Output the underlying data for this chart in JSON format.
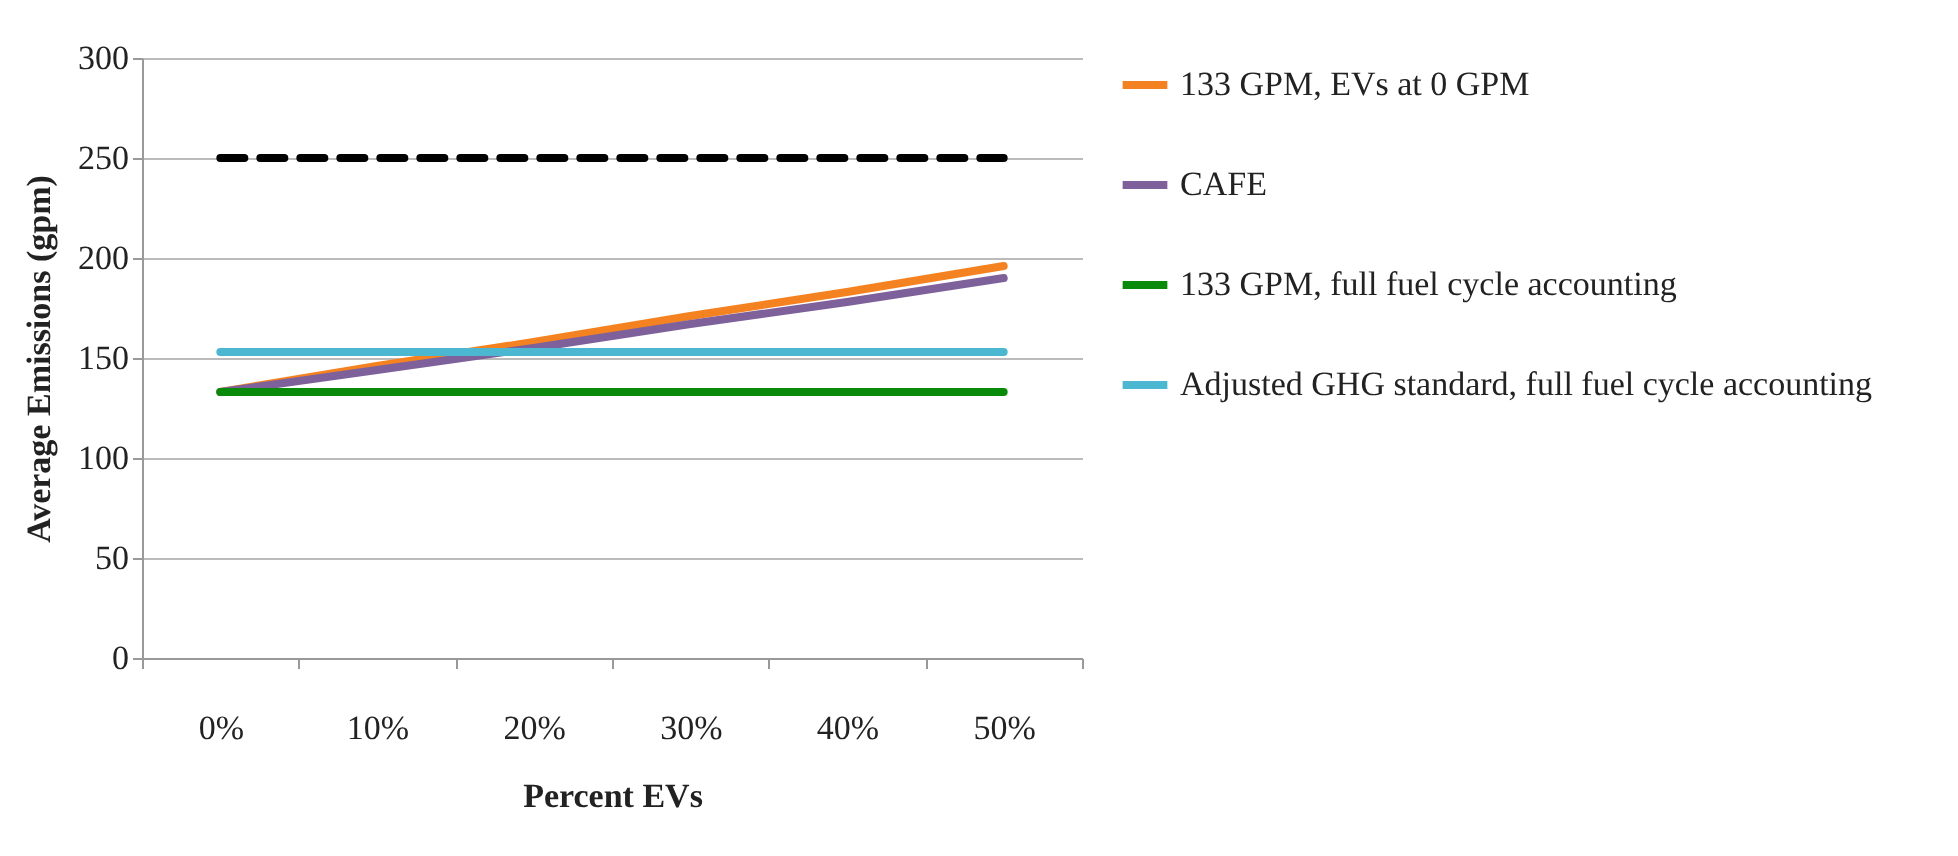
{
  "chart_data": {
    "type": "line",
    "xlabel": "Percent EVs",
    "ylabel": "Average Emissions (gpm)",
    "categories": [
      "0%",
      "10%",
      "20%",
      "30%",
      "40%",
      "50%"
    ],
    "series": [
      {
        "name": "133 GPM, EVs at 0 GPM",
        "color": "#f58220",
        "values": [
          133,
          146,
          158,
          171,
          183,
          196
        ]
      },
      {
        "name": "CAFE",
        "color": "#7e619a",
        "values": [
          133,
          144,
          155,
          167,
          178,
          190
        ]
      },
      {
        "name": "133 GPM, full fuel cycle accounting",
        "color": "#0a8a0a",
        "values": [
          133,
          133,
          133,
          133,
          133,
          133
        ]
      },
      {
        "name": "Adjusted GHG standard, full fuel cycle accounting",
        "color": "#4bb7d0",
        "values": [
          153,
          153,
          153,
          153,
          153,
          153
        ]
      },
      {
        "color": "#000000",
        "line_style": "dashed",
        "values": [
          250,
          250,
          250,
          250,
          250,
          250
        ]
      }
    ],
    "ylim": [
      0,
      300
    ],
    "yticks": [
      0,
      50,
      100,
      150,
      200,
      250,
      300
    ],
    "grid": "y",
    "legend": "right",
    "marker": "none"
  }
}
